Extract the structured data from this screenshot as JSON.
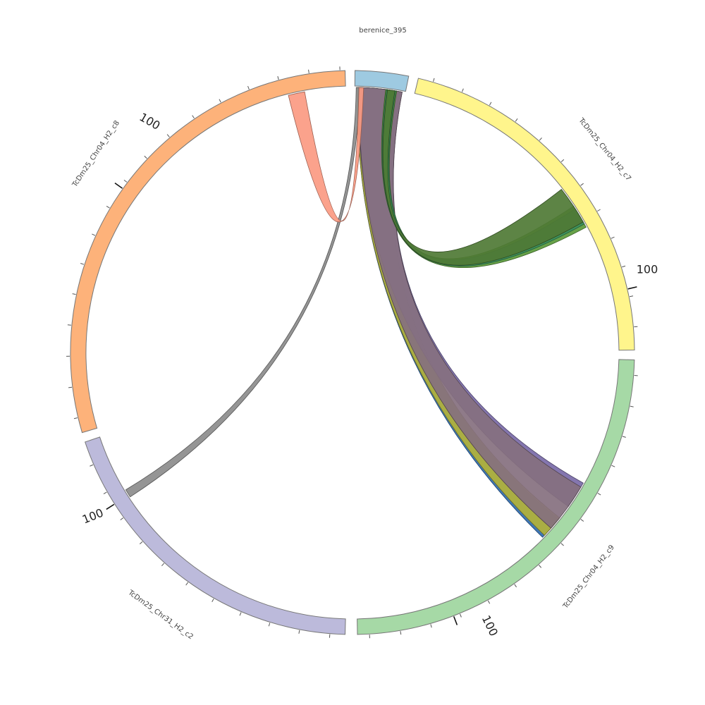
{
  "chart_data": {
    "type": "chord",
    "segments": [
      {
        "id": "berenice",
        "label": "berenice_395",
        "color": "#9ecae1",
        "tick_label": ""
      },
      {
        "id": "c7",
        "label": "TcDm25_Chr04_H2_c7",
        "color": "#fff58c",
        "tick_label": "100"
      },
      {
        "id": "c9",
        "label": "TcDm25_Chr04_H2_c9",
        "color": "#a6d9a6",
        "tick_label": "100"
      },
      {
        "id": "c2",
        "label": "TcDm25_Chr31_H2_c2",
        "color": "#bcbadb",
        "tick_label": "100"
      },
      {
        "id": "c8",
        "label": "TcDm25_Chr04_H2_c8",
        "color": "#fdb27a",
        "tick_label": "100"
      }
    ],
    "links": [
      {
        "from": "berenice",
        "to": "c9",
        "color": "#2f6bb0"
      },
      {
        "from": "berenice",
        "to": "c9",
        "color": "#b3b33a"
      },
      {
        "from": "berenice",
        "to": "c9",
        "color": "#7a6aa8"
      },
      {
        "from": "berenice",
        "to": "c9",
        "color": "#85707f"
      },
      {
        "from": "berenice",
        "to": "c7",
        "color": "#5a9a3a"
      },
      {
        "from": "berenice",
        "to": "c7",
        "color": "#3a9060"
      },
      {
        "from": "berenice",
        "to": "c7",
        "color": "#4f7a35"
      },
      {
        "from": "berenice",
        "to": "c2",
        "color": "#8c8c8c"
      },
      {
        "from": "berenice",
        "to": "c8",
        "color": "#fb9a82"
      }
    ]
  }
}
